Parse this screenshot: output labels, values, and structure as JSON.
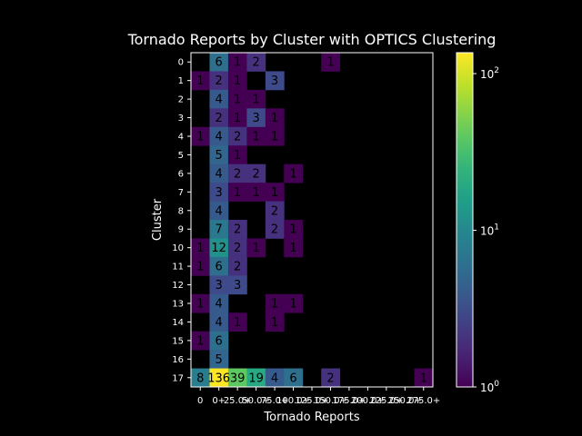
{
  "chart_data": {
    "type": "heatmap",
    "title": "Tornado Reports by Cluster with OPTICS Clustering",
    "xlabel": "Tornado Reports",
    "ylabel": "Cluster",
    "x_categories": [
      "0",
      "0+",
      "25.0+",
      "50.0+",
      "75.0+",
      "100.0+",
      "125.0+",
      "150.0+",
      "175.0+",
      "200.0+",
      "225.0+",
      "250.0+",
      "275.0+"
    ],
    "y_categories": [
      "0",
      "1",
      "2",
      "3",
      "4",
      "5",
      "6",
      "7",
      "8",
      "9",
      "10",
      "11",
      "12",
      "13",
      "14",
      "15",
      "16",
      "17"
    ],
    "values": [
      [
        0,
        6,
        1,
        2,
        0,
        0,
        0,
        1,
        0,
        0,
        0,
        0,
        0
      ],
      [
        1,
        2,
        1,
        0,
        3,
        0,
        0,
        0,
        0,
        0,
        0,
        0,
        0
      ],
      [
        0,
        4,
        1,
        1,
        0,
        0,
        0,
        0,
        0,
        0,
        0,
        0,
        0
      ],
      [
        0,
        2,
        1,
        3,
        1,
        0,
        0,
        0,
        0,
        0,
        0,
        0,
        0
      ],
      [
        1,
        4,
        2,
        1,
        1,
        0,
        0,
        0,
        0,
        0,
        0,
        0,
        0
      ],
      [
        0,
        5,
        1,
        0,
        0,
        0,
        0,
        0,
        0,
        0,
        0,
        0,
        0
      ],
      [
        0,
        4,
        2,
        2,
        0,
        1,
        0,
        0,
        0,
        0,
        0,
        0,
        0
      ],
      [
        0,
        3,
        1,
        1,
        1,
        0,
        0,
        0,
        0,
        0,
        0,
        0,
        0
      ],
      [
        0,
        4,
        0,
        0,
        2,
        0,
        0,
        0,
        0,
        0,
        0,
        0,
        0
      ],
      [
        0,
        7,
        2,
        0,
        2,
        1,
        0,
        0,
        0,
        0,
        0,
        0,
        0
      ],
      [
        1,
        12,
        2,
        1,
        0,
        1,
        0,
        0,
        0,
        0,
        0,
        0,
        0
      ],
      [
        1,
        6,
        2,
        0,
        0,
        0,
        0,
        0,
        0,
        0,
        0,
        0,
        0
      ],
      [
        0,
        3,
        3,
        0,
        0,
        0,
        0,
        0,
        0,
        0,
        0,
        0,
        0
      ],
      [
        1,
        4,
        0,
        0,
        1,
        1,
        0,
        0,
        0,
        0,
        0,
        0,
        0
      ],
      [
        0,
        4,
        1,
        0,
        1,
        0,
        0,
        0,
        0,
        0,
        0,
        0,
        0
      ],
      [
        1,
        6,
        0,
        0,
        0,
        0,
        0,
        0,
        0,
        0,
        0,
        0,
        0
      ],
      [
        0,
        5,
        0,
        0,
        0,
        0,
        0,
        0,
        0,
        0,
        0,
        0,
        0
      ],
      [
        8,
        136,
        39,
        19,
        4,
        6,
        0,
        2,
        0,
        0,
        0,
        0,
        1
      ]
    ],
    "colorbar": {
      "scale": "log",
      "range": [
        1,
        136
      ],
      "colormap": "viridis",
      "ticks": [
        {
          "base": "10",
          "exp": "0",
          "value": 1
        },
        {
          "base": "10",
          "exp": "1",
          "value": 10
        },
        {
          "base": "10",
          "exp": "2",
          "value": 100
        }
      ]
    },
    "grid": false,
    "legend": "colorbar-right"
  },
  "colors": {
    "background": "#000000",
    "foreground": "#ffffff",
    "annotation_text": "#000000",
    "empty_cell": "#000000"
  }
}
